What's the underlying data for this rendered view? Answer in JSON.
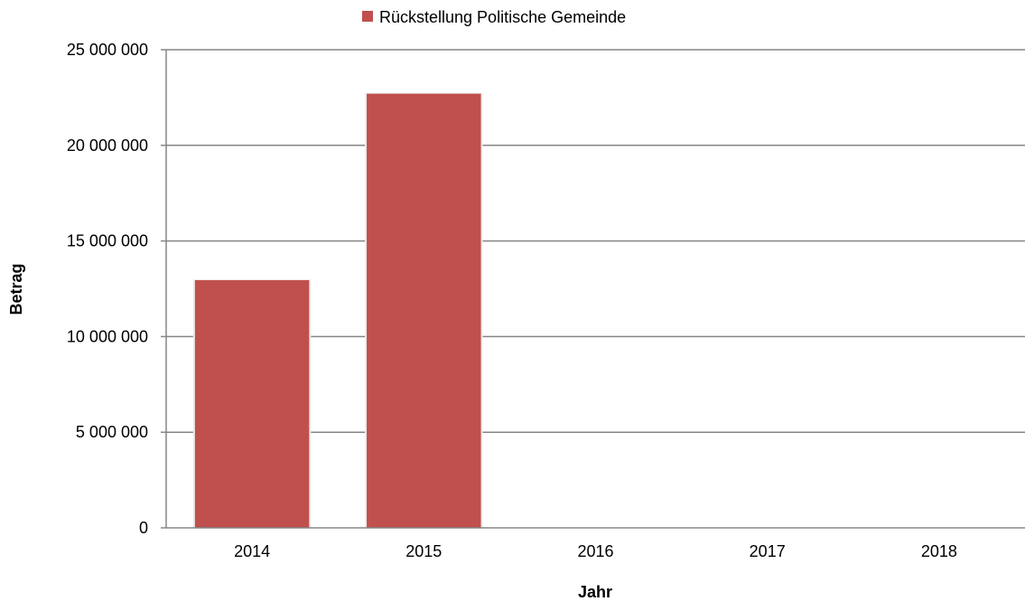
{
  "chart_data": {
    "type": "bar",
    "categories": [
      "2014",
      "2015",
      "2016",
      "2017",
      "2018"
    ],
    "series": [
      {
        "name": "Rückstellung Politische Gemeinde",
        "values": [
          12950000,
          22700000,
          0,
          0,
          0
        ],
        "color": "#c0504d"
      }
    ],
    "xlabel": "Jahr",
    "ylabel": "Betrag",
    "ylim": [
      0,
      25000000
    ],
    "yticks": [
      0,
      5000000,
      10000000,
      15000000,
      20000000,
      25000000
    ],
    "ytick_labels": [
      "0",
      "5 000 000",
      "10 000 000",
      "15 000 000",
      "20 000 000",
      "25 000 000"
    ],
    "grid": true,
    "legend_position": "top-center"
  }
}
